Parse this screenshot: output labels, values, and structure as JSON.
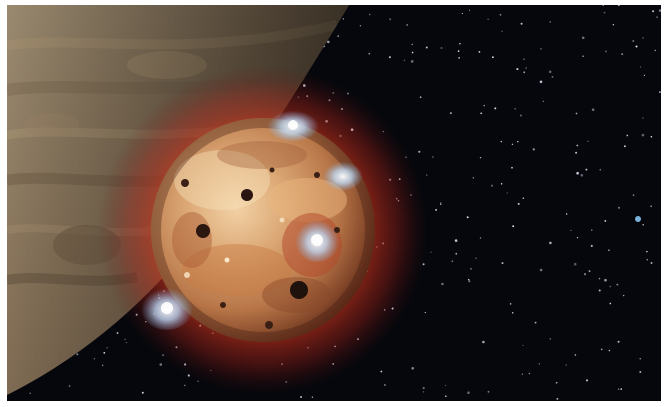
{
  "image": {
    "kind": "space-illustration",
    "subjects": [
      "volcanic-moon",
      "gas-giant-limb",
      "starfield",
      "volcanic-plumes",
      "red-atmospheric-glow"
    ]
  },
  "colors": {
    "space": "#05070c",
    "star": "#e6ecff",
    "glow": "#d2331c",
    "moon_base": "#c98e5a",
    "moon_light": "#f0c89a",
    "moon_dark": "#7a3f24",
    "plume": "#bfe0ff",
    "giant_base": "#8c7a62",
    "giant_band": "#a89272",
    "frame": "#ffffff"
  }
}
